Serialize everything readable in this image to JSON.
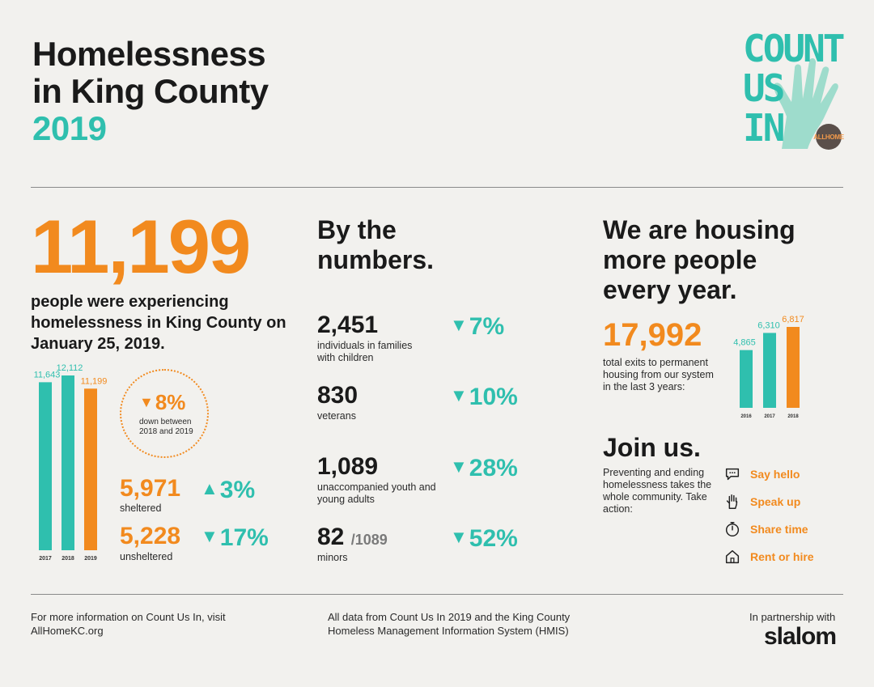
{
  "title": {
    "line1": "Homelessness",
    "line2": "in King County",
    "year": "2019"
  },
  "logo": {
    "text": "COUNT US IN",
    "badge": "ALLHOME"
  },
  "headline": {
    "total": "11,199",
    "description": "people were experiencing homelessness in King County on January 25, 2019."
  },
  "change": {
    "pct": "8%",
    "text": "down between 2018 and 2019"
  },
  "sheltered": {
    "value": "5,971",
    "label": "sheltered",
    "pct": "3%"
  },
  "unsheltered": {
    "value": "5,228",
    "label": "unsheltered",
    "pct": "17%"
  },
  "by_numbers": {
    "heading": "By the numbers.",
    "items": [
      {
        "value": "2,451",
        "label": "individuals in families with children",
        "pct": "7%"
      },
      {
        "value": "830",
        "label": "veterans",
        "pct": "10%"
      },
      {
        "value": "1,089",
        "label": "unaccompanied youth and young adults",
        "pct": "28%"
      },
      {
        "value": "82",
        "suffix": "/1089",
        "label": "minors",
        "pct": "52%"
      }
    ]
  },
  "housing": {
    "heading": "We are housing more people every year.",
    "total": "17,992",
    "text": "total exits to permanent housing from our system in the last 3 years:"
  },
  "join": {
    "heading": "Join us.",
    "text": "Preventing and ending homelessness takes the whole community. Take action:",
    "actions": [
      "Say hello",
      "Speak up",
      "Share time",
      "Rent or hire"
    ]
  },
  "footer": {
    "left": "For more information on Count Us In, visit AllHomeKC.org",
    "center": "All data from Count Us In 2019 and the King County Homeless Management Information System (HMIS)",
    "right": "In partnership with",
    "brand": "slalom"
  },
  "colors": {
    "orange": "#f28a1e",
    "teal": "#2fbfae",
    "background": "#f2f1ee"
  },
  "chart_data": [
    {
      "type": "bar",
      "title": "",
      "categories": [
        "2017",
        "2018",
        "2019"
      ],
      "values": [
        11643,
        12112,
        11199
      ],
      "value_labels": [
        "11,643",
        "12,112",
        "11,199"
      ],
      "colors": [
        "#2fbfae",
        "#2fbfae",
        "#f28a1e"
      ],
      "ylim": [
        0,
        12112
      ],
      "xlabel": "",
      "ylabel": ""
    },
    {
      "type": "bar",
      "title": "",
      "categories": [
        "2016",
        "2017",
        "2018"
      ],
      "values": [
        4865,
        6310,
        6817
      ],
      "value_labels": [
        "4,865",
        "6,310",
        "6,817"
      ],
      "colors": [
        "#2fbfae",
        "#2fbfae",
        "#f28a1e"
      ],
      "ylim": [
        0,
        6817
      ],
      "xlabel": "",
      "ylabel": ""
    }
  ]
}
